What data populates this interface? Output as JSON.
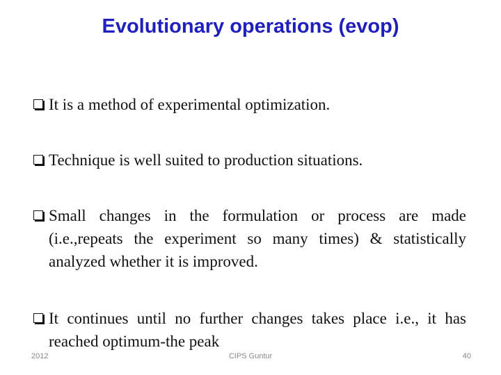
{
  "header": {
    "title": "Evolutionary operations (evop)"
  },
  "bullets": [
    "It is a method of experimental optimization.",
    "Technique is well suited to production situations.",
    "Small changes in the formulation or process are made (i.e.,repeats the experiment so many times) & statistically analyzed whether it is improved.",
    "It continues until no further changes takes place i.e., it has reached optimum-the peak"
  ],
  "footer": {
    "date": "2012",
    "organization": "CIPS Guntur",
    "page": "40"
  }
}
